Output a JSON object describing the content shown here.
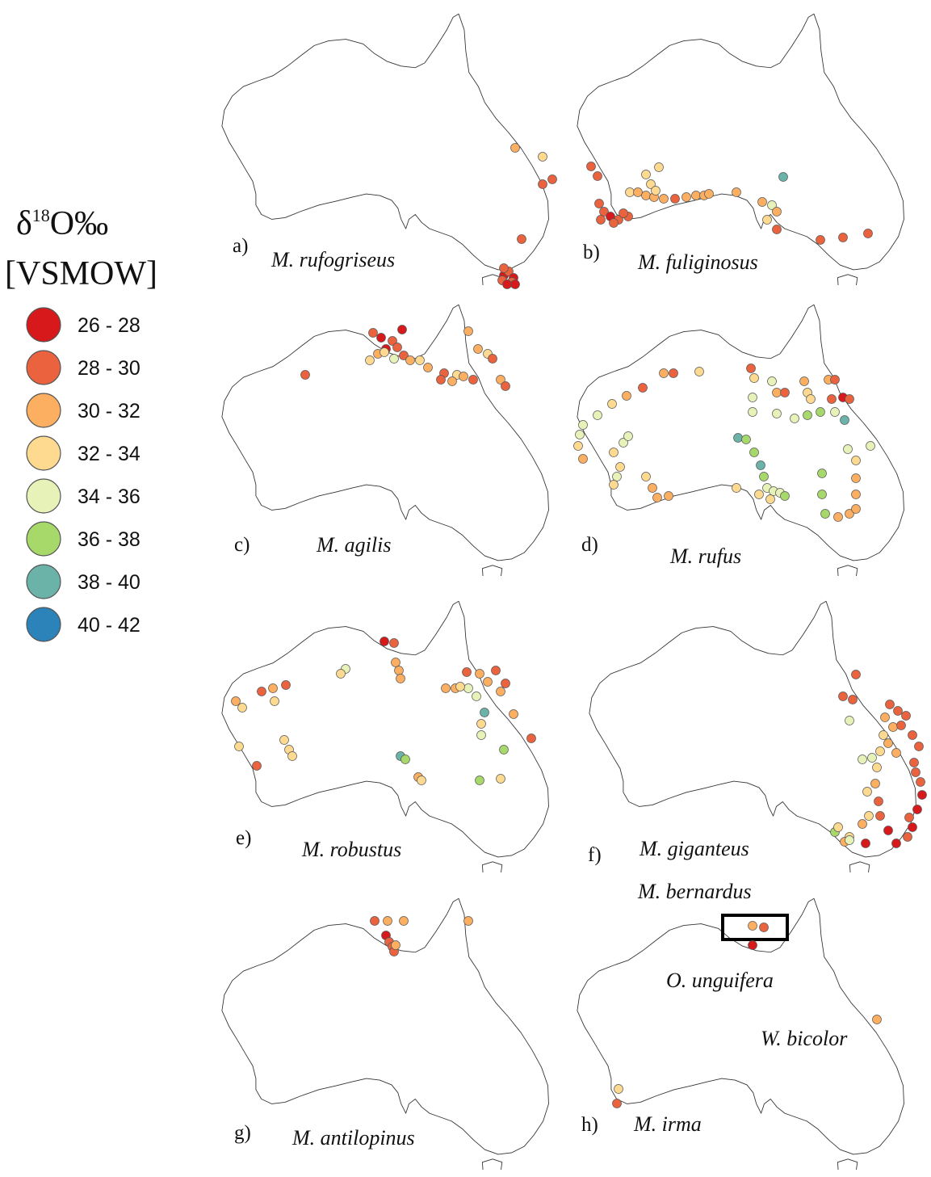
{
  "legend": {
    "title_delta": "δ",
    "title_sup": "18",
    "title_rest": "O‰",
    "title_line2": "[VSMOW]",
    "classes": [
      {
        "label": "26 - 28",
        "color": "#d7191c"
      },
      {
        "label": "28 - 30",
        "color": "#ea633e"
      },
      {
        "label": "30 - 32",
        "color": "#fcae61"
      },
      {
        "label": "32 - 34",
        "color": "#fed990"
      },
      {
        "label": "34 - 36",
        "color": "#e6f2b7"
      },
      {
        "label": "36 - 38",
        "color": "#a6d96a"
      },
      {
        "label": "38 - 40",
        "color": "#6bb3a8"
      },
      {
        "label": "40 - 42",
        "color": "#2b83ba"
      }
    ]
  },
  "panels": [
    {
      "letter": "a)",
      "species": [
        "M. rufogriseus"
      ]
    },
    {
      "letter": "b)",
      "species": [
        "M. fuliginosus"
      ]
    },
    {
      "letter": "c)",
      "species": [
        "M. agilis"
      ]
    },
    {
      "letter": "d)",
      "species": [
        "M. rufus"
      ]
    },
    {
      "letter": "e)",
      "species": [
        "M. robustus"
      ]
    },
    {
      "letter": "f)",
      "species": [
        "M. giganteus"
      ]
    },
    {
      "letter": "g)",
      "species": [
        "M. antilopinus"
      ]
    },
    {
      "letter": "h)",
      "species": [
        "M. bernardus",
        "O. unguifera",
        "W. bicolor",
        "M. irma"
      ]
    }
  ],
  "colors": {
    "coast": "#333333",
    "highlight_box": "#000000"
  }
}
